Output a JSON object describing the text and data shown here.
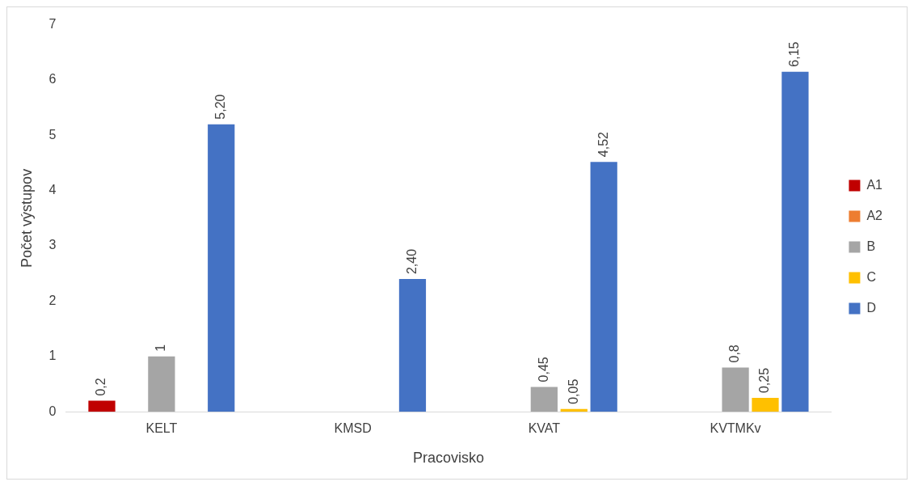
{
  "chart_data": {
    "type": "bar",
    "xlabel": "Pracovisko",
    "ylabel": "Počet výstupov",
    "categories": [
      "KELT",
      "KMSD",
      "KVAT",
      "KVTMKv"
    ],
    "series": [
      {
        "name": "A1",
        "color": "#c00000",
        "values": [
          0.2,
          null,
          null,
          null
        ],
        "value_labels": [
          "0,2",
          null,
          null,
          null
        ]
      },
      {
        "name": "A2",
        "color": "#ed7d31",
        "values": [
          null,
          null,
          null,
          null
        ],
        "value_labels": [
          null,
          null,
          null,
          null
        ]
      },
      {
        "name": "B",
        "color": "#a5a5a5",
        "values": [
          1,
          null,
          0.45,
          0.8
        ],
        "value_labels": [
          "1",
          null,
          "0,45",
          "0,8"
        ]
      },
      {
        "name": "C",
        "color": "#ffc000",
        "values": [
          null,
          null,
          0.05,
          0.25
        ],
        "value_labels": [
          null,
          null,
          "0,05",
          "0,25"
        ]
      },
      {
        "name": "D",
        "color": "#4472c4",
        "values": [
          5.2,
          2.4,
          4.52,
          6.15
        ],
        "value_labels": [
          "5,20",
          "2,40",
          "4,52",
          "6,15"
        ]
      }
    ],
    "ylim": [
      0,
      7
    ],
    "yticks": [
      0,
      1,
      2,
      3,
      4,
      5,
      6,
      7
    ],
    "grid": false,
    "legend": "right"
  }
}
